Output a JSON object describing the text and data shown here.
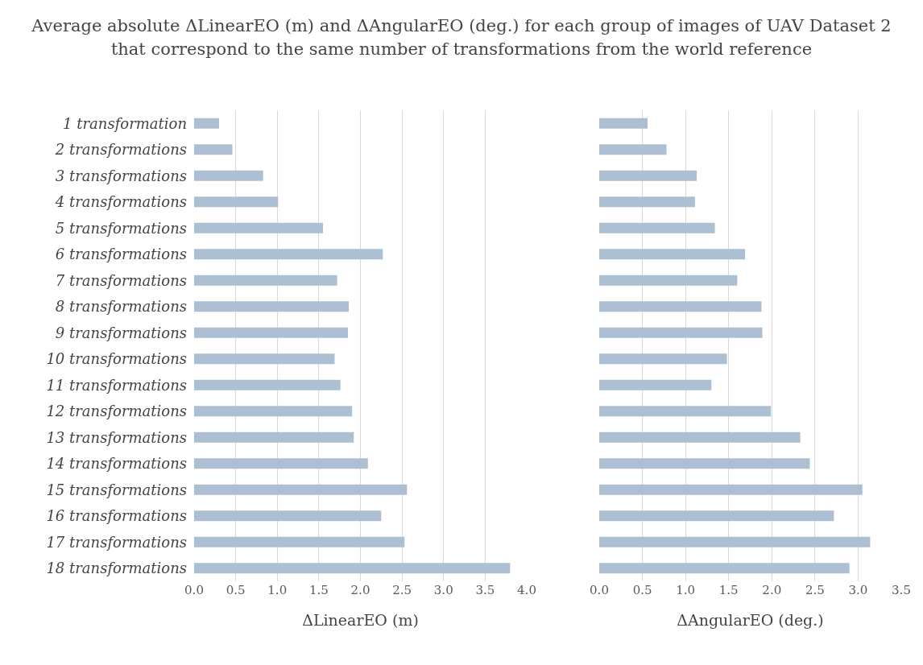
{
  "chart_data": [
    {
      "type": "bar",
      "orientation": "horizontal",
      "title": "Average absolute ΔLinearEO (m) and ΔAngularEO (deg.) for each group of images of UAV Dataset 2 that correspond to the same number of transformations from the world reference",
      "xlabel": "ΔLinearEO (m)",
      "categories": [
        "1 transformation",
        "2 transformations",
        "3 transformations",
        "4 transformations",
        "5 transformations",
        "6 transformations",
        "7 transformations",
        "8 transformations",
        "9 transformations",
        "10 transformations",
        "11 transformations",
        "12 transformations",
        "13 transformations",
        "14 transformations",
        "15 transformations",
        "16 transformations",
        "17 transformations",
        "18 transformations"
      ],
      "values": [
        0.3,
        0.46,
        0.83,
        1.01,
        1.55,
        2.27,
        1.72,
        1.86,
        1.85,
        1.69,
        1.76,
        1.9,
        1.92,
        2.09,
        2.56,
        2.25,
        2.53,
        3.8
      ],
      "color": "#adbfd3",
      "xlim": [
        0,
        4
      ],
      "xticks": [
        {
          "value": 0,
          "label": "0.0"
        },
        {
          "value": 0.5,
          "label": "0.5"
        },
        {
          "value": 1,
          "label": "1.0"
        },
        {
          "value": 1.5,
          "label": "1.5"
        },
        {
          "value": 2,
          "label": "2.0"
        },
        {
          "value": 2.5,
          "label": "2.5"
        },
        {
          "value": 3,
          "label": "3.0"
        },
        {
          "value": 3.5,
          "label": "3.5"
        },
        {
          "value": 4,
          "label": "4.0"
        }
      ],
      "grid": "x"
    },
    {
      "type": "bar",
      "orientation": "horizontal",
      "xlabel": "ΔAngularEO (deg.)",
      "categories": [
        null,
        null,
        null,
        null,
        null,
        null,
        null,
        null,
        null,
        null,
        null,
        null,
        null,
        null,
        null,
        null,
        null,
        null
      ],
      "values": [
        0.56,
        0.78,
        1.13,
        1.11,
        1.34,
        1.69,
        1.6,
        1.88,
        1.89,
        1.48,
        1.3,
        1.99,
        2.33,
        2.44,
        3.05,
        2.72,
        3.14,
        2.9
      ],
      "color": "#adbfd3",
      "xlim": [
        0,
        3.5
      ],
      "xticks": [
        {
          "value": 0,
          "label": "0.0"
        },
        {
          "value": 0.5,
          "label": "0.5"
        },
        {
          "value": 1,
          "label": "1.0"
        },
        {
          "value": 1.5,
          "label": "1.5"
        },
        {
          "value": 2,
          "label": "2.0"
        },
        {
          "value": 2.5,
          "label": "2.5"
        },
        {
          "value": 3,
          "label": "3.0"
        },
        {
          "value": 3.5,
          "label": "3.5"
        }
      ],
      "grid": "x"
    }
  ]
}
